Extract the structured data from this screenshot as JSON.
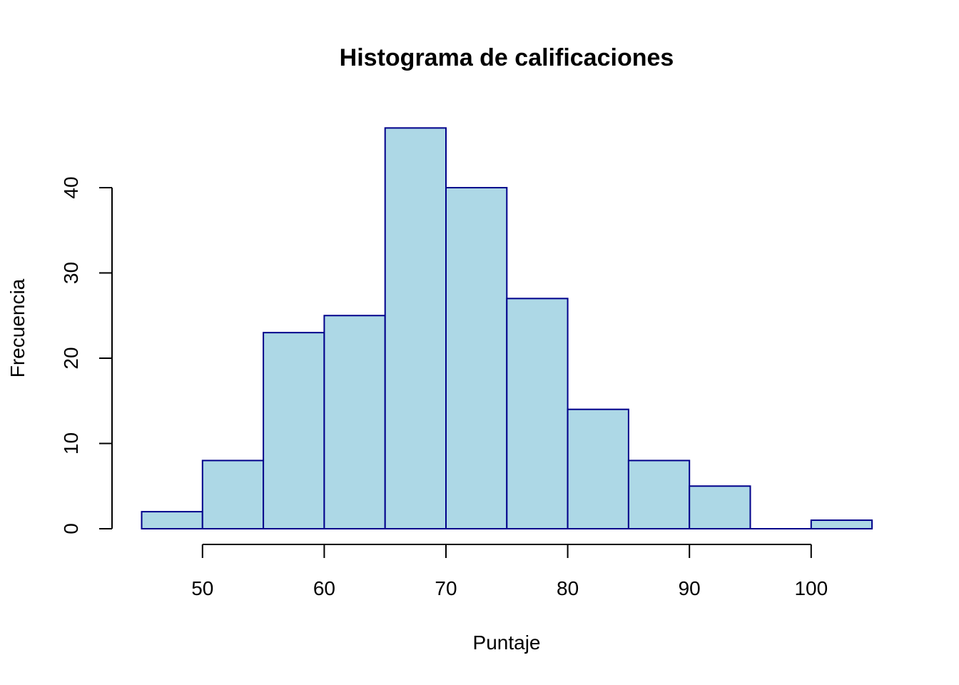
{
  "chart_data": {
    "type": "bar",
    "title": "Histograma de calificaciones",
    "xlabel": "Puntaje",
    "ylabel": "Frecuencia",
    "bins": [
      {
        "from": 45,
        "to": 50,
        "count": 2
      },
      {
        "from": 50,
        "to": 55,
        "count": 8
      },
      {
        "from": 55,
        "to": 60,
        "count": 23
      },
      {
        "from": 60,
        "to": 65,
        "count": 25
      },
      {
        "from": 65,
        "to": 70,
        "count": 47
      },
      {
        "from": 70,
        "to": 75,
        "count": 40
      },
      {
        "from": 75,
        "to": 80,
        "count": 27
      },
      {
        "from": 80,
        "to": 85,
        "count": 14
      },
      {
        "from": 85,
        "to": 90,
        "count": 8
      },
      {
        "from": 90,
        "to": 95,
        "count": 5
      },
      {
        "from": 95,
        "to": 100,
        "count": 0
      },
      {
        "from": 100,
        "to": 105,
        "count": 1
      }
    ],
    "xlim": [
      45,
      105
    ],
    "ylim": [
      0,
      47
    ],
    "x_ticks": [
      50,
      60,
      70,
      80,
      90,
      100
    ],
    "y_ticks": [
      0,
      10,
      20,
      30,
      40
    ],
    "grid": false,
    "legend": "none",
    "bar_fill_color": "#add8e6",
    "bar_border_color": "#00008b"
  }
}
